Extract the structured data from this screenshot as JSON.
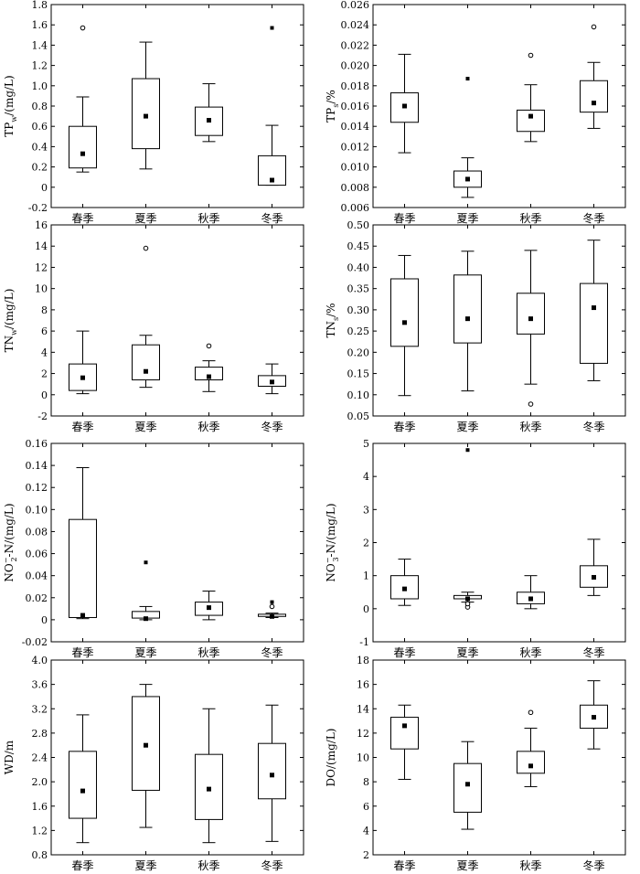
{
  "chart_data": [
    {
      "type": "box",
      "id": "tpw",
      "ylabel": "TP_w/(mg/L)",
      "ylabel_parts": {
        "main": "TP",
        "sub": "w",
        "sup": "",
        "rest": "/(mg/L)"
      },
      "categories": [
        "春季",
        "夏季",
        "秋季",
        "冬季"
      ],
      "ylim": [
        -0.2,
        1.8
      ],
      "yticks": [
        "-0.2",
        "0",
        "0.2",
        "0.4",
        "0.6",
        "0.8",
        "1.0",
        "1.2",
        "1.4",
        "1.6",
        "1.8"
      ],
      "boxes": [
        {
          "min": 0.15,
          "q1": 0.19,
          "median": 0.19,
          "q3": 0.6,
          "max": 0.89,
          "mean": 0.33,
          "outliers": [
            {
              "value": 1.57,
              "kind": "open"
            }
          ]
        },
        {
          "min": 0.18,
          "q1": 0.38,
          "median": 0.38,
          "q3": 1.07,
          "max": 1.43,
          "mean": 0.7,
          "outliers": []
        },
        {
          "min": 0.45,
          "q1": 0.51,
          "median": 0.51,
          "q3": 0.79,
          "max": 1.02,
          "mean": 0.66,
          "outliers": []
        },
        {
          "min": 0.02,
          "q1": 0.02,
          "median": 0.02,
          "q3": 0.31,
          "max": 0.61,
          "mean": 0.07,
          "outliers": [
            {
              "value": 1.57,
              "kind": "star"
            }
          ]
        }
      ]
    },
    {
      "type": "box",
      "id": "tps",
      "ylabel": "TP_s/%",
      "ylabel_parts": {
        "main": "TP",
        "sub": "s",
        "sup": "",
        "rest": "/%"
      },
      "categories": [
        "春季",
        "夏季",
        "秋季",
        "冬季"
      ],
      "ylim": [
        0.006,
        0.026
      ],
      "yticks": [
        "0.006",
        "0.008",
        "0.010",
        "0.012",
        "0.014",
        "0.016",
        "0.018",
        "0.020",
        "0.022",
        "0.024",
        "0.026"
      ],
      "boxes": [
        {
          "min": 0.0114,
          "q1": 0.0144,
          "median": 0.0144,
          "q3": 0.0173,
          "max": 0.0211,
          "mean": 0.016,
          "outliers": []
        },
        {
          "min": 0.007,
          "q1": 0.008,
          "median": 0.008,
          "q3": 0.0096,
          "max": 0.0109,
          "mean": 0.0088,
          "outliers": [
            {
              "value": 0.0187,
              "kind": "star"
            }
          ]
        },
        {
          "min": 0.0125,
          "q1": 0.0135,
          "median": 0.0135,
          "q3": 0.0156,
          "max": 0.0181,
          "mean": 0.015,
          "outliers": [
            {
              "value": 0.021,
              "kind": "open"
            }
          ]
        },
        {
          "min": 0.0138,
          "q1": 0.0154,
          "median": 0.0154,
          "q3": 0.0185,
          "max": 0.0203,
          "mean": 0.0163,
          "outliers": [
            {
              "value": 0.0238,
              "kind": "open"
            }
          ]
        }
      ]
    },
    {
      "type": "box",
      "id": "tnw",
      "ylabel": "TN_w/(mg/L)",
      "ylabel_parts": {
        "main": "TN",
        "sub": "w",
        "sup": "",
        "rest": "/(mg/L)"
      },
      "categories": [
        "春季",
        "夏季",
        "秋季",
        "冬季"
      ],
      "ylim": [
        -2,
        16
      ],
      "yticks": [
        "-2",
        "0",
        "2",
        "4",
        "6",
        "8",
        "10",
        "12",
        "14",
        "16"
      ],
      "boxes": [
        {
          "min": 0.1,
          "q1": 0.4,
          "median": 0.4,
          "q3": 2.9,
          "max": 6.0,
          "mean": 1.6,
          "outliers": []
        },
        {
          "min": 0.7,
          "q1": 1.4,
          "median": 1.4,
          "q3": 4.7,
          "max": 5.6,
          "mean": 2.2,
          "outliers": [
            {
              "value": 13.8,
              "kind": "open"
            }
          ]
        },
        {
          "min": 0.3,
          "q1": 1.4,
          "median": 1.4,
          "q3": 2.6,
          "max": 3.2,
          "mean": 1.7,
          "outliers": [
            {
              "value": 4.6,
              "kind": "open"
            }
          ]
        },
        {
          "min": 0.1,
          "q1": 0.8,
          "median": 0.8,
          "q3": 1.8,
          "max": 2.9,
          "mean": 1.2,
          "outliers": []
        }
      ]
    },
    {
      "type": "box",
      "id": "tns",
      "ylabel": "TN_s/%",
      "ylabel_parts": {
        "main": "TN",
        "sub": "s",
        "sup": "",
        "rest": "/%"
      },
      "categories": [
        "春季",
        "夏季",
        "秋季",
        "冬季"
      ],
      "ylim": [
        0.05,
        0.5
      ],
      "yticks": [
        "0.05",
        "0.10",
        "0.15",
        "0.20",
        "0.25",
        "0.30",
        "0.35",
        "0.40",
        "0.45",
        "0.50"
      ],
      "boxes": [
        {
          "min": 0.098,
          "q1": 0.214,
          "median": 0.214,
          "q3": 0.373,
          "max": 0.428,
          "mean": 0.27,
          "outliers": []
        },
        {
          "min": 0.109,
          "q1": 0.222,
          "median": 0.222,
          "q3": 0.382,
          "max": 0.438,
          "mean": 0.279,
          "outliers": []
        },
        {
          "min": 0.125,
          "q1": 0.243,
          "median": 0.243,
          "q3": 0.339,
          "max": 0.44,
          "mean": 0.279,
          "outliers": [
            {
              "value": 0.078,
              "kind": "open"
            }
          ]
        },
        {
          "min": 0.133,
          "q1": 0.174,
          "median": 0.174,
          "q3": 0.362,
          "max": 0.464,
          "mean": 0.305,
          "outliers": []
        }
      ]
    },
    {
      "type": "box",
      "id": "no2",
      "ylabel": "NO2−-N/(mg/L)",
      "ylabel_parts": {
        "main": "NO",
        "sub": "2",
        "sup": "−",
        "rest": "-N/(mg/L)"
      },
      "categories": [
        "春季",
        "夏季",
        "秋季",
        "冬季"
      ],
      "ylim": [
        -0.02,
        0.16
      ],
      "yticks": [
        "-0.02",
        "0",
        "0.02",
        "0.04",
        "0.06",
        "0.08",
        "0.10",
        "0.12",
        "0.14",
        "0.16"
      ],
      "boxes": [
        {
          "min": 0.001,
          "q1": 0.002,
          "median": 0.002,
          "q3": 0.091,
          "max": 0.138,
          "mean": 0.004,
          "outliers": []
        },
        {
          "min": 0.0,
          "q1": 0.0015,
          "median": 0.0015,
          "q3": 0.0075,
          "max": 0.012,
          "mean": 0.001,
          "outliers": [
            {
              "value": 0.052,
              "kind": "star"
            }
          ]
        },
        {
          "min": 0.0,
          "q1": 0.004,
          "median": 0.004,
          "q3": 0.016,
          "max": 0.026,
          "mean": 0.011,
          "outliers": []
        },
        {
          "min": 0.002,
          "q1": 0.003,
          "median": 0.003,
          "q3": 0.005,
          "max": 0.006,
          "mean": 0.003,
          "outliers": [
            {
              "value": 0.012,
              "kind": "open"
            },
            {
              "value": 0.016,
              "kind": "star"
            }
          ]
        }
      ]
    },
    {
      "type": "box",
      "id": "no3",
      "ylabel": "NO3−-N/(mg/L)",
      "ylabel_parts": {
        "main": "NO",
        "sub": "3",
        "sup": "−",
        "rest": "-N/(mg/L)"
      },
      "categories": [
        "春季",
        "夏季",
        "秋季",
        "冬季"
      ],
      "ylim": [
        -1,
        5
      ],
      "yticks": [
        "-1",
        "0",
        "1",
        "2",
        "3",
        "4",
        "5"
      ],
      "boxes": [
        {
          "min": 0.1,
          "q1": 0.3,
          "median": 0.3,
          "q3": 1.0,
          "max": 1.5,
          "mean": 0.6,
          "outliers": []
        },
        {
          "min": 0.2,
          "q1": 0.3,
          "median": 0.3,
          "q3": 0.4,
          "max": 0.5,
          "mean": 0.3,
          "outliers": [
            {
              "value": 0.05,
              "kind": "open"
            },
            {
              "value": 0.15,
              "kind": "open"
            },
            {
              "value": 4.8,
              "kind": "star"
            }
          ]
        },
        {
          "min": 0.0,
          "q1": 0.15,
          "median": 0.15,
          "q3": 0.5,
          "max": 1.0,
          "mean": 0.3,
          "outliers": []
        },
        {
          "min": 0.4,
          "q1": 0.65,
          "median": 0.65,
          "q3": 1.3,
          "max": 2.1,
          "mean": 0.95,
          "outliers": []
        }
      ]
    },
    {
      "type": "box",
      "id": "wd",
      "ylabel": "WD/m",
      "ylabel_parts": {
        "main": "WD/m",
        "sub": "",
        "sup": "",
        "rest": ""
      },
      "categories": [
        "春季",
        "夏季",
        "秋季",
        "冬季"
      ],
      "ylim": [
        0.8,
        4.0
      ],
      "yticks": [
        "0.8",
        "1.2",
        "1.6",
        "2.0",
        "2.4",
        "2.8",
        "3.2",
        "3.6",
        "4.0"
      ],
      "boxes": [
        {
          "min": 1.0,
          "q1": 1.4,
          "median": 1.4,
          "q3": 2.5,
          "max": 3.1,
          "mean": 1.85,
          "outliers": []
        },
        {
          "min": 1.25,
          "q1": 1.86,
          "median": 1.86,
          "q3": 3.4,
          "max": 3.6,
          "mean": 2.6,
          "outliers": []
        },
        {
          "min": 1.0,
          "q1": 1.38,
          "median": 1.38,
          "q3": 2.45,
          "max": 3.2,
          "mean": 1.88,
          "outliers": []
        },
        {
          "min": 1.02,
          "q1": 1.72,
          "median": 1.72,
          "q3": 2.63,
          "max": 3.26,
          "mean": 2.11,
          "outliers": []
        }
      ]
    },
    {
      "type": "box",
      "id": "do",
      "ylabel": "DO/(mg/L)",
      "ylabel_parts": {
        "main": "DO/(mg/L)",
        "sub": "",
        "sup": "",
        "rest": ""
      },
      "categories": [
        "春季",
        "夏季",
        "秋季",
        "冬季"
      ],
      "ylim": [
        2,
        18
      ],
      "yticks": [
        "2",
        "4",
        "6",
        "8",
        "10",
        "12",
        "14",
        "16",
        "18"
      ],
      "boxes": [
        {
          "min": 8.2,
          "q1": 10.7,
          "median": 10.7,
          "q3": 13.3,
          "max": 14.3,
          "mean": 12.6,
          "outliers": []
        },
        {
          "min": 4.1,
          "q1": 5.5,
          "median": 5.5,
          "q3": 9.5,
          "max": 11.3,
          "mean": 7.8,
          "outliers": []
        },
        {
          "min": 7.6,
          "q1": 8.7,
          "median": 8.7,
          "q3": 10.5,
          "max": 12.4,
          "mean": 9.3,
          "outliers": [
            {
              "value": 13.7,
              "kind": "open"
            }
          ]
        },
        {
          "min": 10.7,
          "q1": 12.4,
          "median": 12.4,
          "q3": 14.3,
          "max": 16.3,
          "mean": 13.3,
          "outliers": []
        }
      ]
    }
  ]
}
